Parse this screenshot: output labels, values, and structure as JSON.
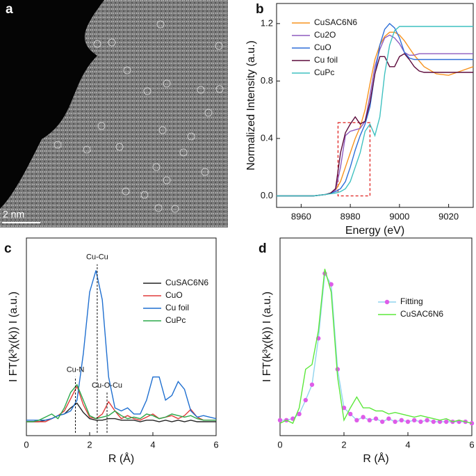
{
  "image_panel": {
    "label": "a",
    "scale_bar": "2 nm"
  },
  "chart_data": [
    {
      "type": "line",
      "panel_label": "b",
      "xlabel": "Energy (eV)",
      "ylabel": "Normalized Intensity (a.u.)",
      "xlim": [
        8950,
        9030
      ],
      "ylim": [
        -0.08,
        1.34
      ],
      "xticks": [
        8960,
        8980,
        9000,
        9020
      ],
      "yticks": [
        {
          "value": 0,
          "label": "0.0"
        },
        {
          "value": 0.4,
          "label": "0.4"
        },
        {
          "value": 0.8,
          "label": "0.8"
        },
        {
          "value": 1.2,
          "label": "1.2"
        }
      ],
      "legend": "upper left",
      "highlight_box": {
        "x": [
          8975,
          8988
        ],
        "y": [
          0,
          0.51
        ]
      },
      "x": [
        8950,
        8955,
        8960,
        8965,
        8970,
        8972,
        8974,
        8976,
        8978,
        8980,
        8982,
        8984,
        8986,
        8988,
        8990,
        8992,
        8994,
        8996,
        8998,
        9000,
        9002,
        9004,
        9006,
        9008,
        9010,
        9015,
        9020,
        9025,
        9030
      ],
      "series": [
        {
          "name": "CuSAC6N6",
          "color": "#f7931e",
          "values": [
            0,
            0,
            0,
            0,
            0.01,
            0.02,
            0.04,
            0.1,
            0.2,
            0.3,
            0.4,
            0.48,
            0.6,
            0.78,
            0.95,
            1.05,
            1.11,
            1.14,
            1.14,
            1.12,
            1.08,
            1.03,
            0.98,
            0.94,
            0.9,
            0.85,
            0.84,
            0.87,
            0.9
          ]
        },
        {
          "name": "Cu2O",
          "color": "#8e5bbf",
          "values": [
            0,
            0,
            0,
            0,
            0.01,
            0.02,
            0.04,
            0.2,
            0.42,
            0.45,
            0.46,
            0.47,
            0.52,
            0.7,
            0.9,
            1.02,
            1.1,
            1.12,
            1.1,
            1.06,
            1.0,
            0.98,
            0.98,
            0.99,
            0.99,
            0.99,
            0.99,
            0.99,
            0.99
          ]
        },
        {
          "name": "CuO",
          "color": "#2e6fd8",
          "values": [
            0,
            0,
            0,
            0,
            0.01,
            0.02,
            0.03,
            0.05,
            0.1,
            0.2,
            0.32,
            0.42,
            0.5,
            0.62,
            0.85,
            1.05,
            1.16,
            1.2,
            1.17,
            1.1,
            1.0,
            0.96,
            0.95,
            0.95,
            0.95,
            0.95,
            0.95,
            0.95,
            0.95
          ]
        },
        {
          "name": "Cu foil",
          "color": "#5c0a3b",
          "values": [
            0,
            0,
            0,
            0,
            0.01,
            0.02,
            0.05,
            0.3,
            0.44,
            0.5,
            0.55,
            0.5,
            0.52,
            0.65,
            0.85,
            0.97,
            0.97,
            0.9,
            0.9,
            0.97,
            0.99,
            0.95,
            0.9,
            0.87,
            0.86,
            0.86,
            0.86,
            0.86,
            0.86
          ]
        },
        {
          "name": "CuPc",
          "color": "#3fc1c0",
          "values": [
            0,
            0,
            0,
            0,
            0.01,
            0.015,
            0.02,
            0.03,
            0.05,
            0.1,
            0.2,
            0.3,
            0.45,
            0.5,
            0.42,
            0.55,
            0.85,
            1.05,
            1.15,
            1.18,
            1.18,
            1.18,
            1.18,
            1.18,
            1.18,
            1.18,
            1.18,
            1.18,
            1.18
          ]
        }
      ]
    },
    {
      "type": "line",
      "panel_label": "c",
      "xlabel": "R (Å)",
      "ylabel": "I FT(k³χ(k)) I (a.u.)",
      "xlim": [
        0,
        6
      ],
      "ylim": [
        -0.08,
        1.2
      ],
      "xticks": [
        0,
        2,
        4,
        6
      ],
      "legend": "upper right",
      "annotations": [
        {
          "text": "Cu-Cu",
          "x": 2.24,
          "y": 1.03
        },
        {
          "text": "Cu-N",
          "x": 1.55,
          "y": 0.3
        },
        {
          "text": "Cu-O-Cu",
          "x": 2.55,
          "y": 0.2
        }
      ],
      "x": [
        0,
        0.2,
        0.4,
        0.6,
        0.8,
        1.0,
        1.2,
        1.4,
        1.6,
        1.8,
        2.0,
        2.2,
        2.4,
        2.6,
        2.8,
        3.0,
        3.2,
        3.4,
        3.6,
        3.8,
        4.0,
        4.2,
        4.4,
        4.6,
        4.8,
        5.0,
        5.2,
        5.4,
        5.6,
        5.8,
        6.0
      ],
      "series": [
        {
          "name": "CuSAC6N6",
          "color": "#222222",
          "values": [
            0.01,
            0.01,
            0.01,
            0.02,
            0.03,
            0.05,
            0.06,
            0.1,
            0.13,
            0.07,
            0.03,
            0.02,
            0.02,
            0.03,
            0.03,
            0.02,
            0.02,
            0.02,
            0.01,
            0.02,
            0.02,
            0.01,
            0.02,
            0.01,
            0.02,
            0.01,
            0.02,
            0.01,
            0.01,
            0.01,
            0.01
          ]
        },
        {
          "name": "CuO",
          "color": "#e03a3a",
          "values": [
            0.01,
            0.01,
            0.01,
            0.01,
            0.03,
            0.05,
            0.08,
            0.16,
            0.24,
            0.12,
            0.04,
            0.03,
            0.06,
            0.14,
            0.08,
            0.03,
            0.05,
            0.03,
            0.02,
            0.04,
            0.06,
            0.03,
            0.04,
            0.05,
            0.03,
            0.05,
            0.09,
            0.04,
            0.02,
            0.02,
            0.02
          ]
        },
        {
          "name": "Cu foil",
          "color": "#1f6fd0",
          "values": [
            0.02,
            0.02,
            0.02,
            0.02,
            0.03,
            0.05,
            0.06,
            0.08,
            0.15,
            0.45,
            0.85,
            0.99,
            0.8,
            0.3,
            0.1,
            0.08,
            0.1,
            0.06,
            0.06,
            0.15,
            0.3,
            0.3,
            0.15,
            0.18,
            0.27,
            0.22,
            0.08,
            0.04,
            0.05,
            0.04,
            0.03
          ]
        },
        {
          "name": "CuPc",
          "color": "#2aa84a",
          "values": [
            0.01,
            0.01,
            0.02,
            0.04,
            0.06,
            0.03,
            0.1,
            0.2,
            0.25,
            0.15,
            0.05,
            0.03,
            0.04,
            0.05,
            0.08,
            0.05,
            0.03,
            0.04,
            0.03,
            0.06,
            0.05,
            0.03,
            0.04,
            0.06,
            0.05,
            0.04,
            0.05,
            0.03,
            0.02,
            0.02,
            0.02
          ]
        }
      ]
    },
    {
      "type": "line",
      "panel_label": "d",
      "xlabel": "R (Å)",
      "ylabel": "I FT(k³χ(k)) I (a.u.)",
      "xlim": [
        0,
        6
      ],
      "ylim": [
        -0.08,
        1.2
      ],
      "xticks": [
        0,
        2,
        4,
        6
      ],
      "legend": "right",
      "x": [
        0,
        0.2,
        0.4,
        0.6,
        0.8,
        1.0,
        1.2,
        1.4,
        1.6,
        1.8,
        2.0,
        2.2,
        2.4,
        2.6,
        2.8,
        3.0,
        3.2,
        3.4,
        3.6,
        3.8,
        4.0,
        4.2,
        4.4,
        4.6,
        4.8,
        5.0,
        5.2,
        5.4,
        5.6,
        5.8,
        6.0
      ],
      "series": [
        {
          "name": "Fitting",
          "color": "#8fd3ee",
          "marker": "circle",
          "marker_color": "#de5ce8",
          "values": [
            0.02,
            0.02,
            0.03,
            0.06,
            0.15,
            0.25,
            0.55,
            0.97,
            0.9,
            0.35,
            0.1,
            0.06,
            0.02,
            0.04,
            0.02,
            0.03,
            0.01,
            0.03,
            0.01,
            0.02,
            0.01,
            0.02,
            0.01,
            0.02,
            0.01,
            0.01,
            0.01,
            0.01,
            0.01,
            0.01,
            0.0
          ]
        },
        {
          "name": "CuSAC6N6",
          "color": "#5be83a",
          "values": [
            0.0,
            0.02,
            0.0,
            0.1,
            0.35,
            0.38,
            0.6,
            1.0,
            0.85,
            0.3,
            0.02,
            0.1,
            0.17,
            0.1,
            0.1,
            0.08,
            0.08,
            0.06,
            0.07,
            0.06,
            0.05,
            0.04,
            0.05,
            0.04,
            0.03,
            0.02,
            0.03,
            0.01,
            0.02,
            0.01,
            0.0
          ]
        }
      ]
    }
  ]
}
